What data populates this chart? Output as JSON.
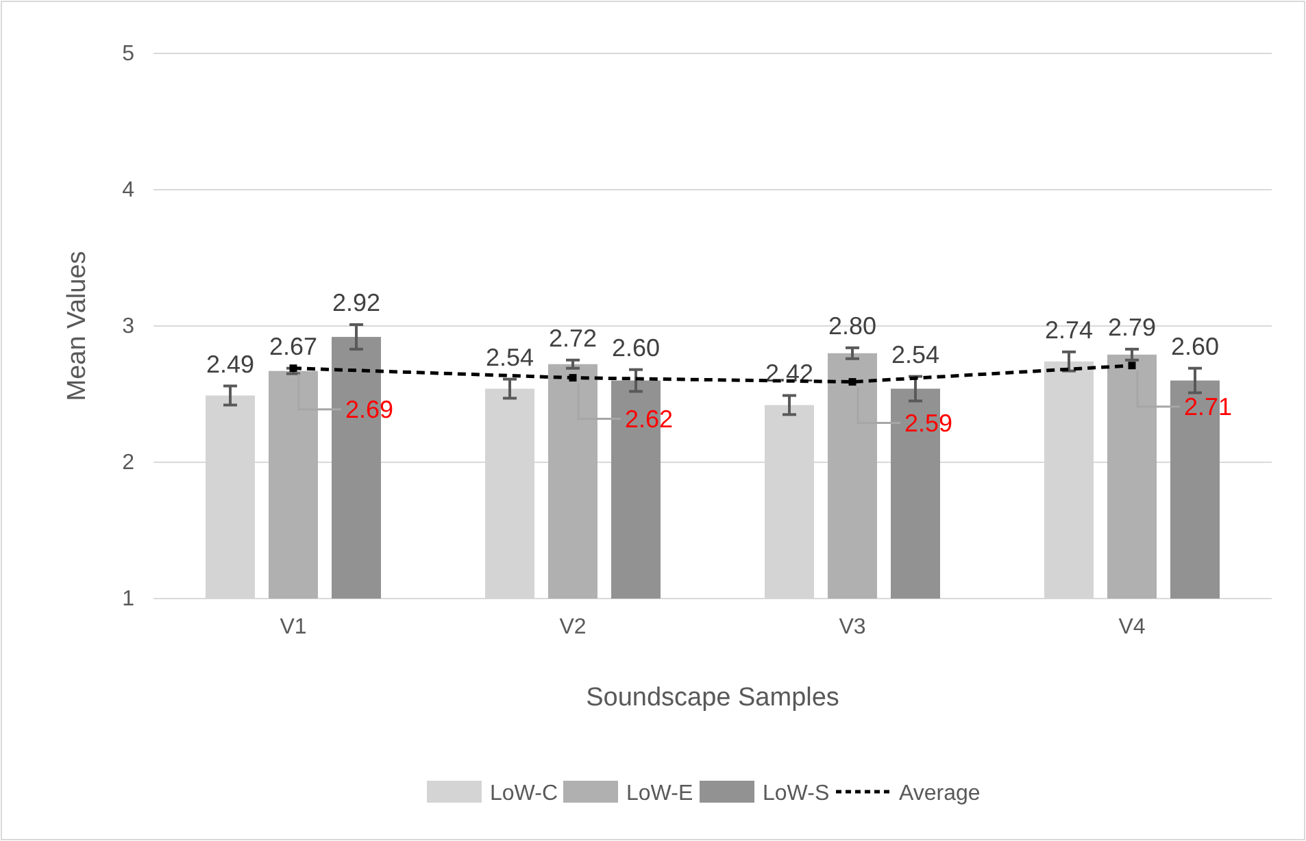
{
  "chart_data": {
    "type": "bar",
    "xlabel": "Soundscape Samples",
    "ylabel": "Mean Values",
    "categories": [
      "V1",
      "V2",
      "V3",
      "V4"
    ],
    "ylim": [
      1,
      5
    ],
    "yticks": [
      1,
      2,
      3,
      4,
      5
    ],
    "grid": "y",
    "legend": "bottom",
    "series": [
      {
        "name": "LoW-C",
        "color": "#d4d4d4",
        "values": [
          2.49,
          2.54,
          2.42,
          2.74
        ],
        "errors": [
          0.07,
          0.07,
          0.07,
          0.07
        ],
        "value_labels": [
          "2.49",
          "2.54",
          "2.42",
          "2.74"
        ]
      },
      {
        "name": "LoW-E",
        "color": "#b0b0b0",
        "values": [
          2.67,
          2.72,
          2.8,
          2.79
        ],
        "errors": [
          0.02,
          0.03,
          0.04,
          0.04
        ],
        "value_labels": [
          "2.67",
          "2.72",
          "2.80",
          "2.79"
        ]
      },
      {
        "name": "LoW-S",
        "color": "#929292",
        "values": [
          2.92,
          2.6,
          2.54,
          2.6
        ],
        "errors": [
          0.09,
          0.08,
          0.09,
          0.09
        ],
        "value_labels": [
          "2.92",
          "2.60",
          "2.54",
          "2.60"
        ]
      },
      {
        "name": "Average",
        "type": "line",
        "color": "#000000",
        "line_style": "dashed",
        "marker": "square",
        "values": [
          2.69,
          2.62,
          2.59,
          2.71
        ],
        "value_labels": [
          "2.69",
          "2.62",
          "2.59",
          "2.71"
        ]
      }
    ]
  }
}
